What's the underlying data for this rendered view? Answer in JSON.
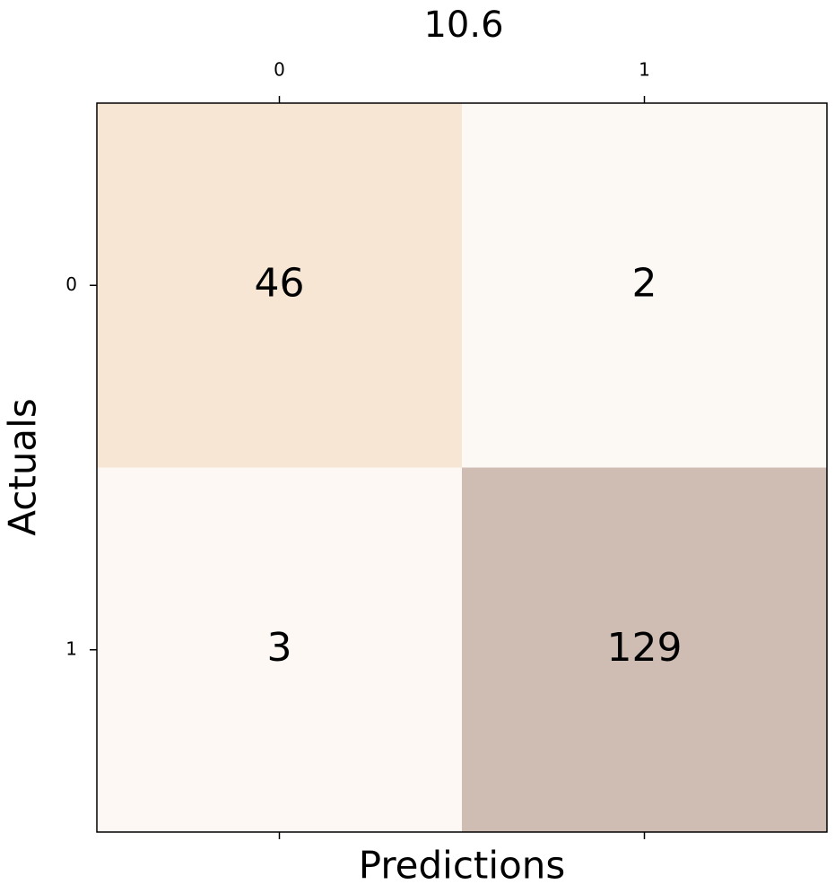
{
  "chart_data": {
    "type": "heatmap",
    "title": "10.6",
    "x_label": "Predictions",
    "y_label": "Actuals",
    "x_categories": [
      "0",
      "1"
    ],
    "y_categories": [
      "0",
      "1"
    ],
    "values": [
      [
        46,
        2
      ],
      [
        3,
        129
      ]
    ],
    "colors": [
      [
        "#f7e6d4",
        "#fcf9f4"
      ],
      [
        "#fdf8f3",
        "#cfbcb3"
      ]
    ]
  }
}
